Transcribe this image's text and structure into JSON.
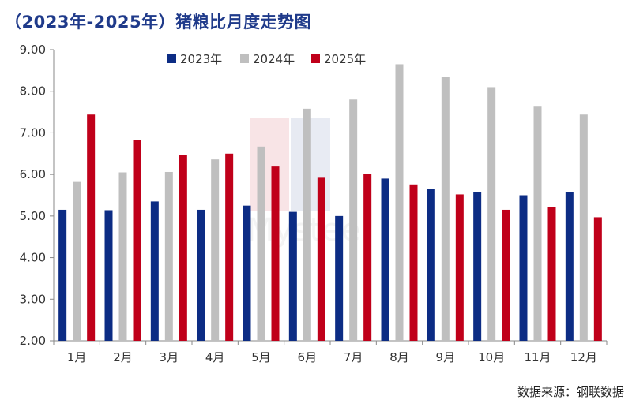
{
  "chart_data": {
    "type": "bar",
    "title": "（2023年-2025年）猪粮比月度走势图",
    "categories": [
      "1月",
      "2月",
      "3月",
      "4月",
      "5月",
      "6月",
      "7月",
      "8月",
      "9月",
      "10月",
      "11月",
      "12月"
    ],
    "series": [
      {
        "name": "2023年",
        "color": "#0c2c84",
        "values": [
          5.15,
          5.14,
          5.35,
          5.15,
          5.25,
          5.1,
          5.0,
          5.9,
          5.65,
          5.58,
          5.5,
          5.58
        ]
      },
      {
        "name": "2024年",
        "color": "#bfbfbf",
        "values": [
          5.82,
          6.05,
          6.06,
          6.36,
          6.67,
          7.58,
          7.8,
          8.65,
          8.35,
          8.1,
          7.63,
          7.44
        ]
      },
      {
        "name": "2025年",
        "color": "#c0001a",
        "values": [
          7.44,
          6.83,
          6.47,
          6.5,
          6.19,
          5.92,
          6.01,
          5.76,
          5.52,
          5.15,
          5.21,
          4.97
        ]
      }
    ],
    "ylim": [
      2.0,
      9.0
    ],
    "yticks": [
      "2.00",
      "3.00",
      "4.00",
      "5.00",
      "6.00",
      "7.00",
      "8.00",
      "9.00"
    ],
    "xlabel": "",
    "ylabel": "",
    "legend_position": "top-center",
    "grid": false
  },
  "source": "数据来源：钢联数据"
}
